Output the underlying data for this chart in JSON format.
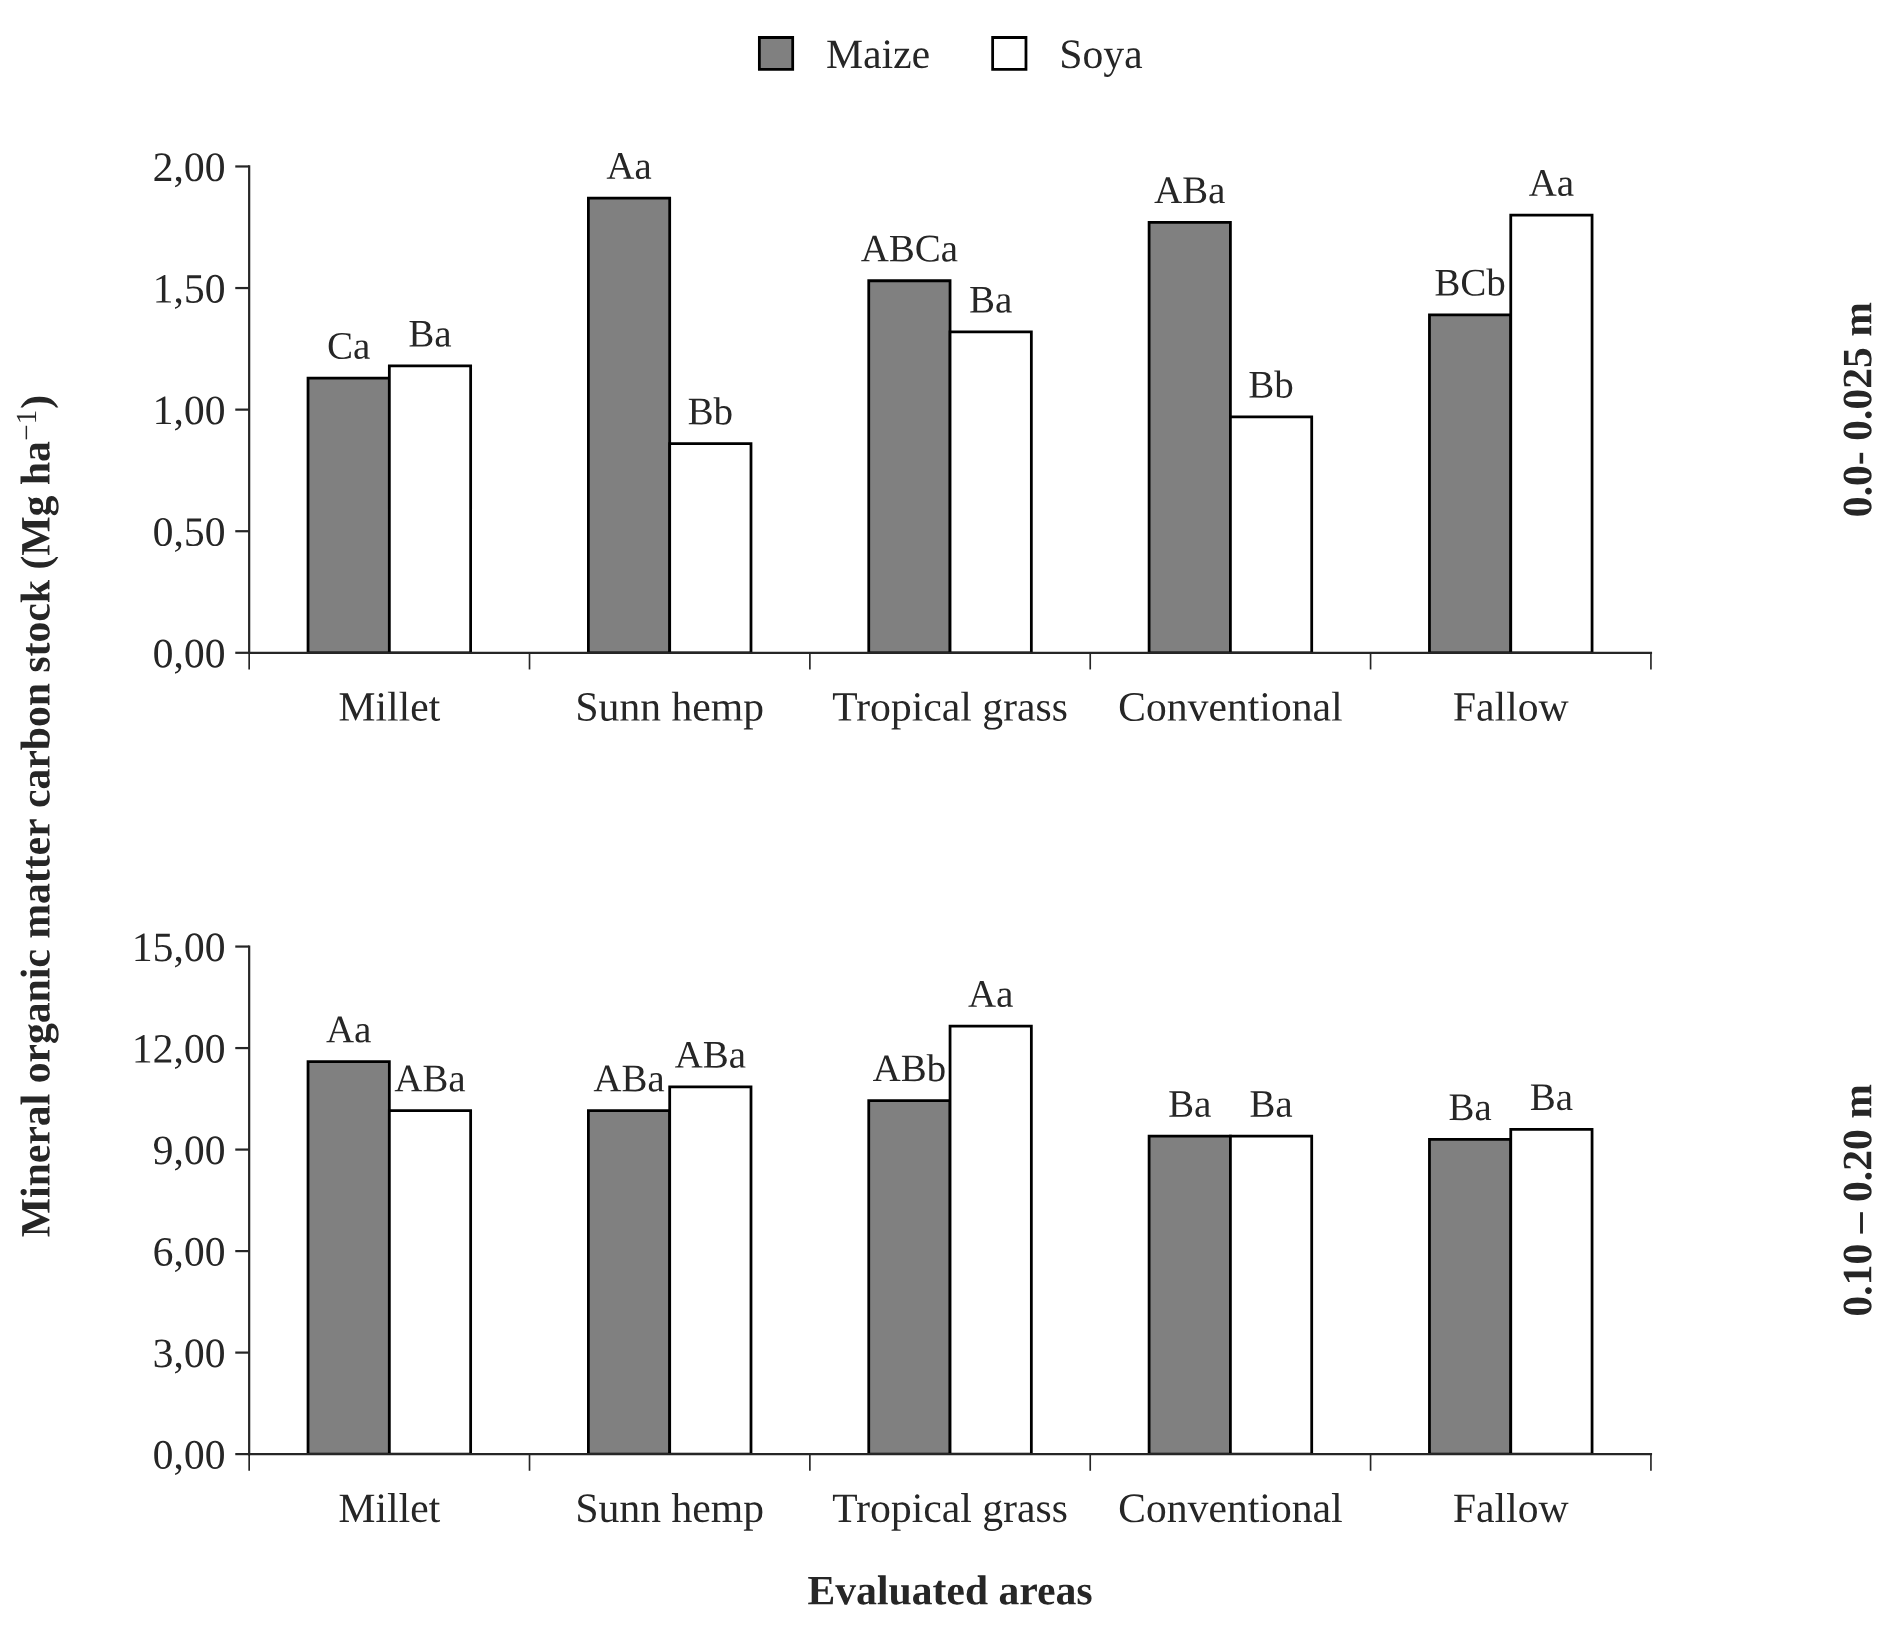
{
  "chart_data": [
    {
      "type": "bar",
      "categories": [
        "Millet",
        "Sunn hemp",
        "Tropical grass",
        "Conventional",
        "Fallow"
      ],
      "ylabel": "Mineral organic matter carbon stock (Mg ha$^{−1}$)",
      "series": [
        {
          "name": "Maize",
          "color": "#808080",
          "values": [
            1.13,
            1.87,
            1.53,
            1.77,
            1.39
          ],
          "value_labels": [
            "Ca",
            "Aa",
            "ABCa",
            "ABa",
            "BCb"
          ]
        },
        {
          "name": "Soya",
          "color": "#ffffff",
          "values": [
            1.18,
            0.86,
            1.32,
            0.97,
            1.8
          ],
          "value_labels": [
            "Ba",
            "Bb",
            "Ba",
            "Bb",
            "Aa"
          ]
        }
      ],
      "ylim": [
        0,
        2
      ],
      "yticks": [
        {
          "value": 0,
          "label": "0,00"
        },
        {
          "value": 0.5,
          "label": "0,50"
        },
        {
          "value": 1,
          "label": "1,00"
        },
        {
          "value": 1.5,
          "label": "1,50"
        },
        {
          "value": 2,
          "label": "2,00"
        }
      ],
      "annotations": [
        "0.0- 0.025 m"
      ],
      "legend": "top",
      "grid": false
    },
    {
      "type": "bar",
      "categories": [
        "Millet",
        "Sunn hemp",
        "Tropical grass",
        "Conventional",
        "Fallow"
      ],
      "xlabel": "Evaluated areas",
      "series": [
        {
          "color": "#808080",
          "values": [
            11.6,
            10.15,
            10.45,
            9.4,
            9.3
          ],
          "value_labels": [
            "Aa",
            "ABa",
            "ABb",
            "Ba",
            "Ba"
          ]
        },
        {
          "color": "#ffffff",
          "values": [
            10.15,
            10.85,
            12.65,
            9.4,
            9.6
          ],
          "value_labels": [
            "ABa",
            "ABa",
            "Aa",
            "Ba",
            "Ba"
          ]
        }
      ],
      "ylim": [
        0,
        15
      ],
      "yticks": [
        {
          "value": 0,
          "label": "0,00"
        },
        {
          "value": 3,
          "label": "3,00"
        },
        {
          "value": 6,
          "label": "6,00"
        },
        {
          "value": 9,
          "label": "9,00"
        },
        {
          "value": 12,
          "label": "12,00"
        },
        {
          "value": 15,
          "label": "15,00"
        }
      ],
      "annotations": [
        "0.10 – 0.20 m"
      ],
      "legend": false,
      "grid": false
    }
  ]
}
